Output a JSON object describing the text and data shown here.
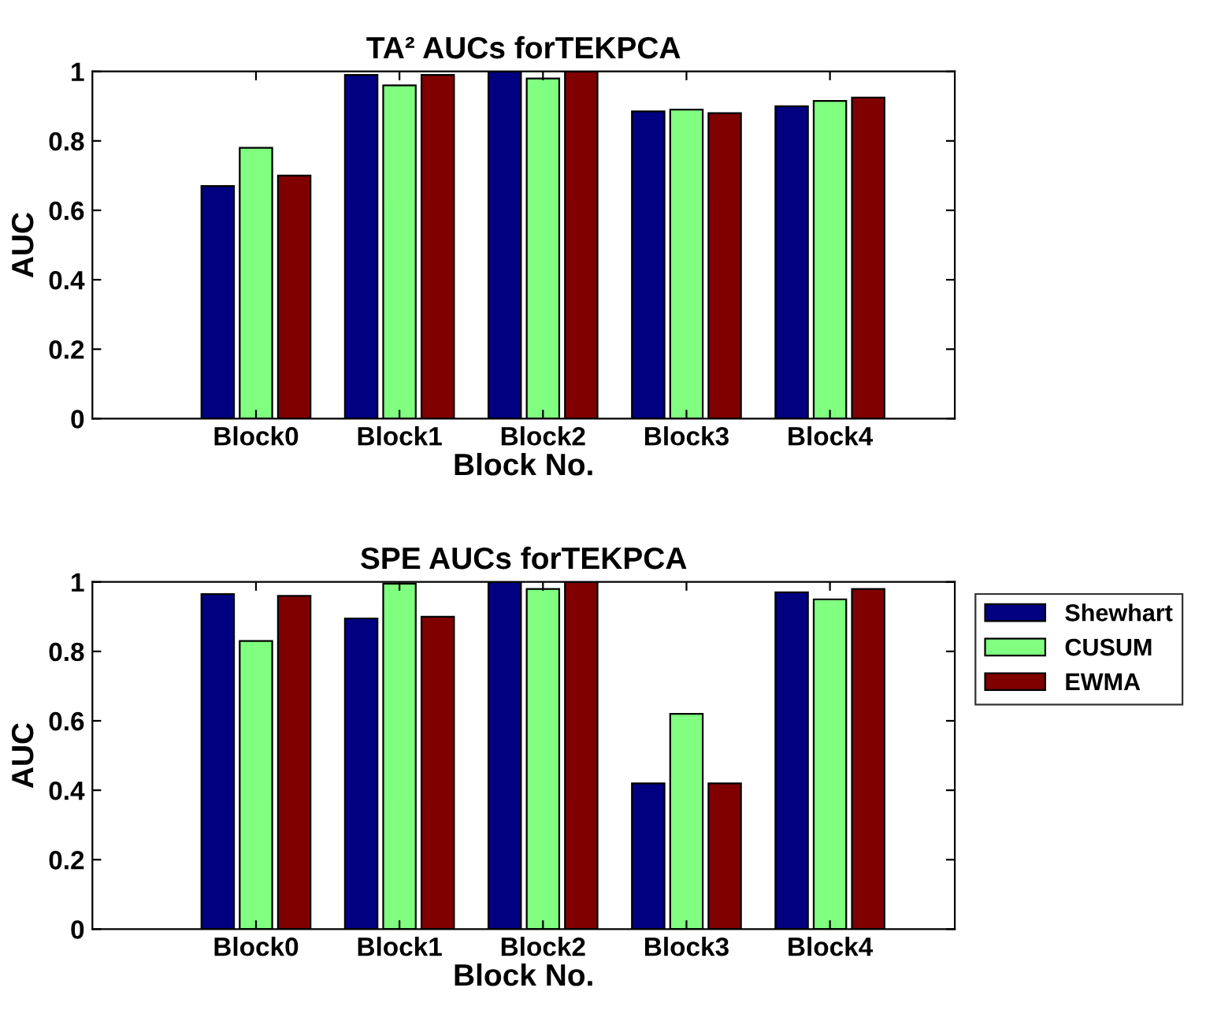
{
  "chart_data": [
    {
      "type": "bar",
      "title": "TA² AUCs forTEKPCA",
      "xlabel": "Block No.",
      "ylabel": "AUC",
      "categories": [
        "Block0",
        "Block1",
        "Block2",
        "Block3",
        "Block4"
      ],
      "series": [
        {
          "color": "#000080",
          "values": [
            0.67,
            0.99,
            1.0,
            0.885,
            0.9
          ]
        },
        {
          "color": "#80ff80",
          "values": [
            0.78,
            0.96,
            0.98,
            0.89,
            0.915
          ]
        },
        {
          "color": "#800000",
          "values": [
            0.7,
            0.99,
            1.0,
            0.88,
            0.925
          ]
        }
      ],
      "ylim": [
        0,
        1
      ],
      "yticks": [
        0,
        0.2,
        0.4,
        0.6,
        0.8,
        1
      ],
      "grid": false
    },
    {
      "type": "bar",
      "title": "SPE AUCs forTEKPCA",
      "xlabel": "Block No.",
      "ylabel": "AUC",
      "categories": [
        "Block0",
        "Block1",
        "Block2",
        "Block3",
        "Block4"
      ],
      "series": [
        {
          "name": "Shewhart",
          "color": "#000080",
          "values": [
            0.965,
            0.895,
            1.0,
            0.42,
            0.97
          ]
        },
        {
          "name": "CUSUM",
          "color": "#80ff80",
          "values": [
            0.83,
            0.995,
            0.98,
            0.62,
            0.95
          ]
        },
        {
          "name": "EWMA",
          "color": "#800000",
          "values": [
            0.96,
            0.9,
            1.0,
            0.42,
            0.98
          ]
        }
      ],
      "ylim": [
        0,
        1
      ],
      "yticks": [
        0,
        0.2,
        0.4,
        0.6,
        0.8,
        1
      ],
      "grid": false,
      "legend": "right"
    }
  ]
}
